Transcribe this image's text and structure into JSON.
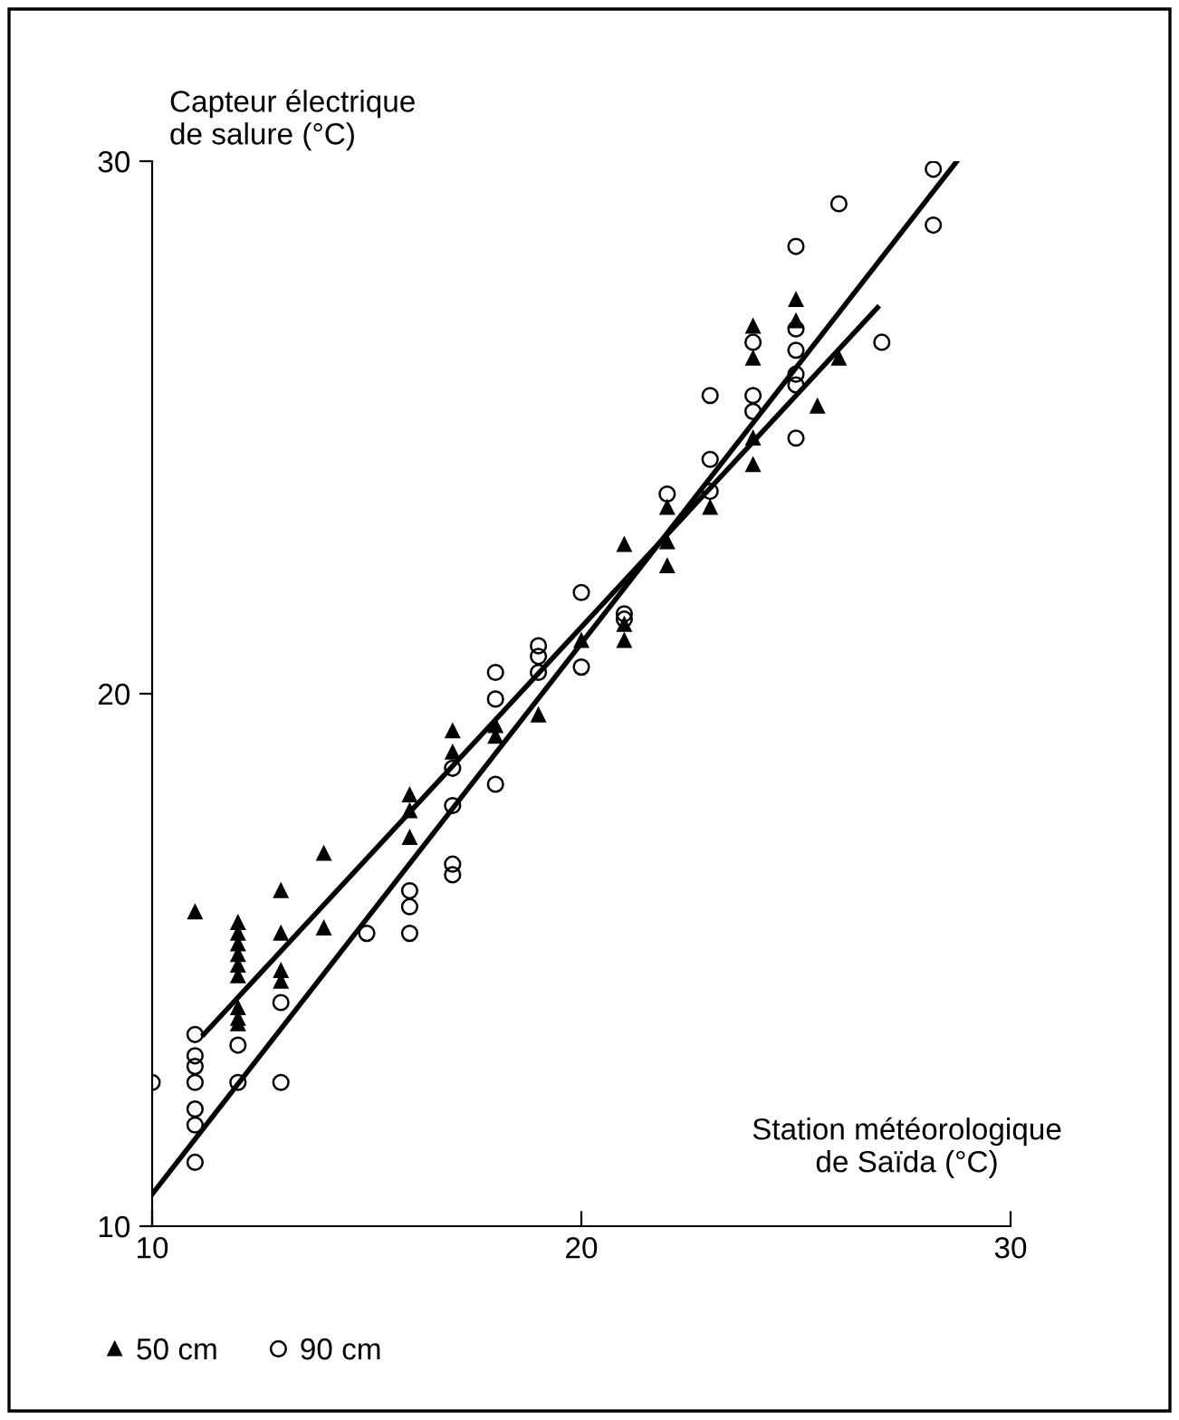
{
  "chart_data": {
    "type": "scatter",
    "xlabel": "Station météorologique\nde Saïda (°C)",
    "ylabel": "Capteur électrique\nde salure (°C)",
    "xlim": [
      10,
      30
    ],
    "ylim": [
      10,
      30
    ],
    "xticks": [
      10,
      20,
      30
    ],
    "yticks": [
      10,
      20,
      30
    ],
    "grid": false,
    "legend": "bottom left",
    "series": [
      {
        "name": "50 cm",
        "color": "#000000",
        "marker": "triangle",
        "x": [
          11,
          12,
          12,
          12,
          12,
          12,
          12,
          12,
          12,
          12,
          13,
          13,
          13,
          13,
          14,
          14,
          16,
          16,
          16,
          17,
          17,
          18,
          18,
          19,
          20,
          21,
          21,
          21,
          22,
          22,
          22,
          23,
          24,
          24,
          24,
          24,
          25,
          25,
          25.5,
          26
        ],
        "values": [
          15.9,
          15.7,
          15.5,
          15.3,
          15.1,
          14.9,
          14.7,
          14.1,
          13.9,
          13.8,
          16.3,
          15.5,
          14.8,
          14.6,
          17.0,
          15.6,
          18.1,
          17.8,
          17.3,
          19.3,
          18.9,
          19.4,
          19.2,
          19.6,
          21.0,
          22.8,
          21.3,
          21.0,
          23.5,
          22.85,
          22.4,
          23.5,
          26.9,
          26.3,
          24.8,
          24.3,
          27.4,
          27.0,
          25.4,
          26.3
        ]
      },
      {
        "name": "90 cm",
        "color": "#000000",
        "marker": "circle",
        "x": [
          10,
          11,
          11,
          11,
          11,
          11,
          11,
          11,
          12,
          12,
          13,
          13,
          15,
          16,
          16,
          16,
          17,
          17,
          17,
          17,
          18,
          18,
          18,
          19,
          19,
          19,
          20,
          20,
          21,
          21,
          22,
          23,
          23,
          23,
          24,
          24,
          24,
          25,
          25,
          25,
          25,
          25,
          25,
          26,
          27,
          28.2,
          28.2
        ],
        "values": [
          12.7,
          13.6,
          13.2,
          13.0,
          12.7,
          12.2,
          11.9,
          11.2,
          13.4,
          12.7,
          14.2,
          12.7,
          15.5,
          16.3,
          16.0,
          15.5,
          18.6,
          17.9,
          16.8,
          16.6,
          20.4,
          19.9,
          18.3,
          20.9,
          20.7,
          20.4,
          21.9,
          20.5,
          21.5,
          21.4,
          23.75,
          25.6,
          24.4,
          23.8,
          26.6,
          25.6,
          25.3,
          28.4,
          26.85,
          26.45,
          26.0,
          25.8,
          24.8,
          29.2,
          26.6,
          29.85,
          28.8
        ]
      },
      {
        "type": "line",
        "color": "#000000",
        "x": [
          11.2,
          26.9
        ],
        "values": [
          13.6,
          27.25
        ]
      },
      {
        "type": "line",
        "color": "#000000",
        "x": [
          10,
          28.75
        ],
        "values": [
          10.6,
          30.0
        ]
      }
    ]
  }
}
